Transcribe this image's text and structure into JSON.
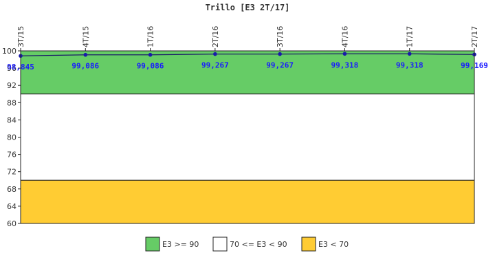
{
  "chart_data": {
    "type": "line",
    "title": "Trillo [E3 2T/17]",
    "categories": [
      "3T/15",
      "4T/15",
      "1T/16",
      "2T/16",
      "3T/16",
      "4T/16",
      "1T/17",
      "2T/17"
    ],
    "series": [
      {
        "values": [
          98.845,
          99.086,
          99.086,
          99.267,
          99.267,
          99.318,
          99.318,
          99.169
        ],
        "labels": [
          "98,845",
          "99,086",
          "99,086",
          "99,267",
          "99,267",
          "99,318",
          "99,318",
          "99,169"
        ],
        "color": "#1a1aaa"
      }
    ],
    "ylim": [
      60,
      100
    ],
    "yticks": [
      "60",
      "64",
      "68",
      "72",
      "76",
      "80",
      "84",
      "88",
      "92",
      "96",
      "100"
    ],
    "bands": [
      {
        "from": 90,
        "to": 100,
        "color": "#66cc66",
        "legend": "E3 >= 90"
      },
      {
        "from": 70,
        "to": 90,
        "color": "#ffffff",
        "legend": "70 <= E3 < 90"
      },
      {
        "from": 60,
        "to": 70,
        "color": "#ffcc33",
        "legend": "E3 < 70"
      }
    ],
    "legend_position": "bottom-center",
    "grid": false
  }
}
